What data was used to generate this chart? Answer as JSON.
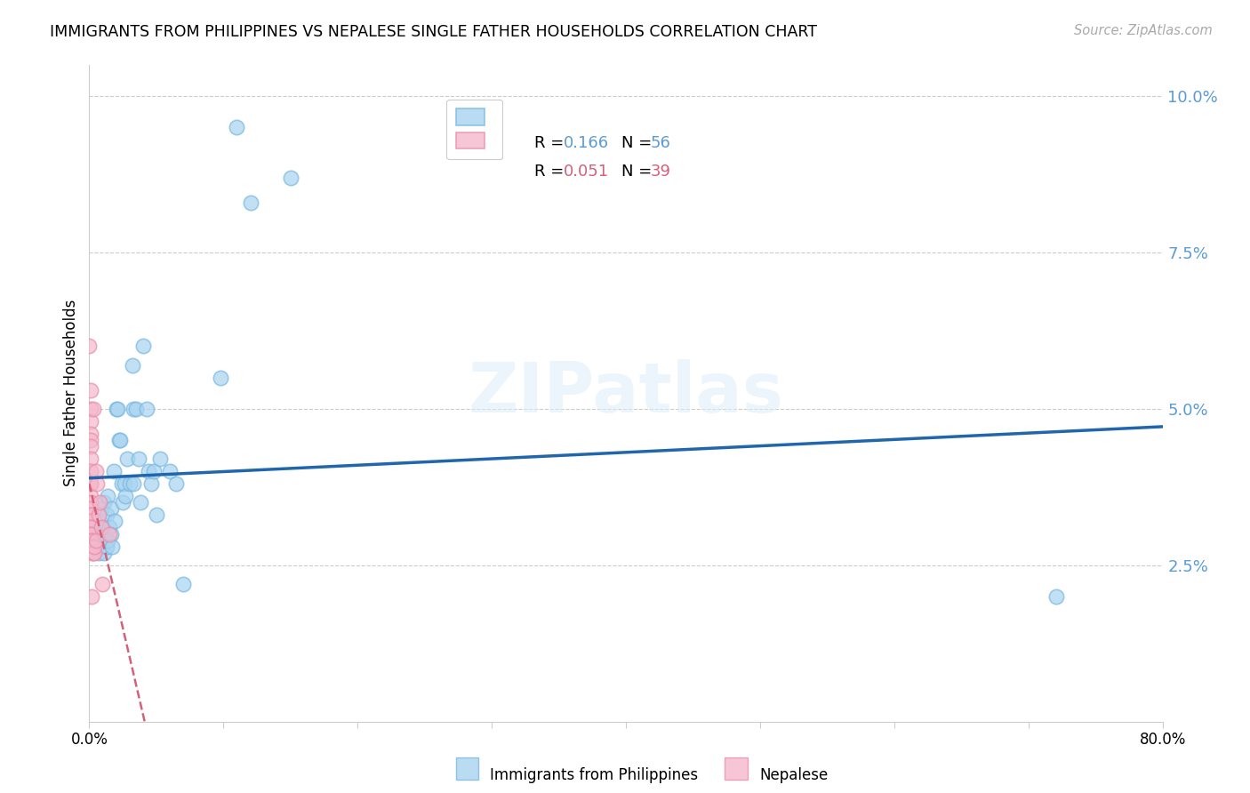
{
  "title": "IMMIGRANTS FROM PHILIPPINES VS NEPALESE SINGLE FATHER HOUSEHOLDS CORRELATION CHART",
  "source": "Source: ZipAtlas.com",
  "ylabel": "Single Father Households",
  "ytick_labels": [
    "2.5%",
    "5.0%",
    "7.5%",
    "10.0%"
  ],
  "ytick_values": [
    0.025,
    0.05,
    0.075,
    0.1
  ],
  "xlim": [
    0.0,
    0.8
  ],
  "ylim": [
    0.0,
    0.105
  ],
  "legend1_label": "Immigrants from Philippines",
  "legend2_label": "Nepalese",
  "R1": "0.166",
  "N1": "56",
  "R2": "0.051",
  "N2": "39",
  "watermark": "ZIPatlas",
  "blue_color": "#a8d4f0",
  "pink_color": "#f4b8cc",
  "blue_edge_color": "#7ab8e0",
  "pink_edge_color": "#e890aa",
  "blue_line_color": "#2166ac",
  "pink_line_color": "#d4607a",
  "axis_color": "#5b9bd5",
  "blue_scatter": [
    [
      0.005,
      0.031
    ],
    [
      0.005,
      0.028
    ],
    [
      0.006,
      0.03
    ],
    [
      0.006,
      0.031
    ],
    [
      0.007,
      0.029
    ],
    [
      0.007,
      0.027
    ],
    [
      0.008,
      0.032
    ],
    [
      0.008,
      0.03
    ],
    [
      0.009,
      0.028
    ],
    [
      0.009,
      0.034
    ],
    [
      0.01,
      0.029
    ],
    [
      0.01,
      0.031
    ],
    [
      0.011,
      0.027
    ],
    [
      0.011,
      0.035
    ],
    [
      0.012,
      0.03
    ],
    [
      0.013,
      0.028
    ],
    [
      0.013,
      0.033
    ],
    [
      0.014,
      0.036
    ],
    [
      0.014,
      0.029
    ],
    [
      0.015,
      0.031
    ],
    [
      0.016,
      0.034
    ],
    [
      0.016,
      0.03
    ],
    [
      0.017,
      0.028
    ],
    [
      0.018,
      0.04
    ],
    [
      0.019,
      0.032
    ],
    [
      0.02,
      0.05
    ],
    [
      0.021,
      0.05
    ],
    [
      0.022,
      0.045
    ],
    [
      0.023,
      0.045
    ],
    [
      0.024,
      0.038
    ],
    [
      0.025,
      0.035
    ],
    [
      0.026,
      0.038
    ],
    [
      0.027,
      0.036
    ],
    [
      0.028,
      0.042
    ],
    [
      0.03,
      0.038
    ],
    [
      0.032,
      0.057
    ],
    [
      0.033,
      0.038
    ],
    [
      0.033,
      0.05
    ],
    [
      0.035,
      0.05
    ],
    [
      0.037,
      0.042
    ],
    [
      0.038,
      0.035
    ],
    [
      0.04,
      0.06
    ],
    [
      0.043,
      0.05
    ],
    [
      0.044,
      0.04
    ],
    [
      0.046,
      0.038
    ],
    [
      0.048,
      0.04
    ],
    [
      0.05,
      0.033
    ],
    [
      0.053,
      0.042
    ],
    [
      0.06,
      0.04
    ],
    [
      0.065,
      0.038
    ],
    [
      0.07,
      0.022
    ],
    [
      0.098,
      0.055
    ],
    [
      0.11,
      0.095
    ],
    [
      0.12,
      0.083
    ],
    [
      0.15,
      0.087
    ],
    [
      0.72,
      0.02
    ]
  ],
  "pink_scatter": [
    [
      0.0,
      0.06
    ],
    [
      0.001,
      0.053
    ],
    [
      0.001,
      0.05
    ],
    [
      0.001,
      0.048
    ],
    [
      0.001,
      0.046
    ],
    [
      0.001,
      0.045
    ],
    [
      0.001,
      0.044
    ],
    [
      0.001,
      0.042
    ],
    [
      0.001,
      0.04
    ],
    [
      0.001,
      0.038
    ],
    [
      0.001,
      0.038
    ],
    [
      0.001,
      0.036
    ],
    [
      0.001,
      0.035
    ],
    [
      0.001,
      0.034
    ],
    [
      0.001,
      0.033
    ],
    [
      0.001,
      0.033
    ],
    [
      0.001,
      0.032
    ],
    [
      0.001,
      0.031
    ],
    [
      0.001,
      0.031
    ],
    [
      0.001,
      0.03
    ],
    [
      0.001,
      0.03
    ],
    [
      0.002,
      0.029
    ],
    [
      0.002,
      0.029
    ],
    [
      0.002,
      0.028
    ],
    [
      0.002,
      0.028
    ],
    [
      0.002,
      0.027
    ],
    [
      0.003,
      0.027
    ],
    [
      0.003,
      0.05
    ],
    [
      0.004,
      0.027
    ],
    [
      0.004,
      0.028
    ],
    [
      0.005,
      0.029
    ],
    [
      0.005,
      0.04
    ],
    [
      0.006,
      0.038
    ],
    [
      0.007,
      0.033
    ],
    [
      0.008,
      0.035
    ],
    [
      0.009,
      0.031
    ],
    [
      0.01,
      0.022
    ],
    [
      0.015,
      0.03
    ],
    [
      0.002,
      0.02
    ]
  ]
}
